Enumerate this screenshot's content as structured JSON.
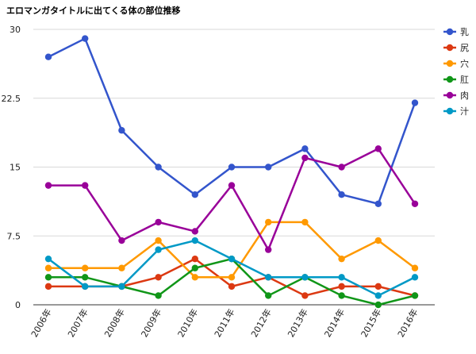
{
  "chart_data": {
    "type": "line",
    "title": "エロマンガタイトルに出てくる体の部位推移",
    "xlabel": "",
    "ylabel": "",
    "categories": [
      "2006年",
      "2007年",
      "2008年",
      "2009年",
      "2010年",
      "2011年",
      "2012年",
      "2013年",
      "2014年",
      "2015年",
      "2016年"
    ],
    "ylim": [
      0,
      30
    ],
    "yticks": [
      0,
      7.5,
      15,
      22.5,
      30
    ],
    "ytick_labels": [
      "0",
      "7.5",
      "15",
      "22.5",
      "30"
    ],
    "grid": true,
    "legend_position": "right",
    "series": [
      {
        "name": "乳",
        "color": "#3355cc",
        "values": [
          27,
          29,
          19,
          15,
          12,
          15,
          15,
          17,
          12,
          11,
          22
        ]
      },
      {
        "name": "尻",
        "color": "#dc3912",
        "values": [
          2,
          2,
          2,
          3,
          5,
          2,
          3,
          1,
          2,
          2,
          1
        ]
      },
      {
        "name": "穴",
        "color": "#ff9900",
        "values": [
          4,
          4,
          4,
          7,
          3,
          3,
          9,
          9,
          5,
          7,
          4
        ]
      },
      {
        "name": "肛",
        "color": "#109618",
        "values": [
          3,
          3,
          2,
          1,
          4,
          5,
          1,
          3,
          1,
          0,
          1
        ]
      },
      {
        "name": "肉",
        "color": "#990099",
        "values": [
          13,
          13,
          7,
          9,
          8,
          13,
          6,
          16,
          15,
          17,
          11
        ]
      },
      {
        "name": "汁",
        "color": "#0099c6",
        "values": [
          5,
          2,
          2,
          6,
          7,
          5,
          3,
          3,
          3,
          1,
          3
        ]
      }
    ]
  }
}
